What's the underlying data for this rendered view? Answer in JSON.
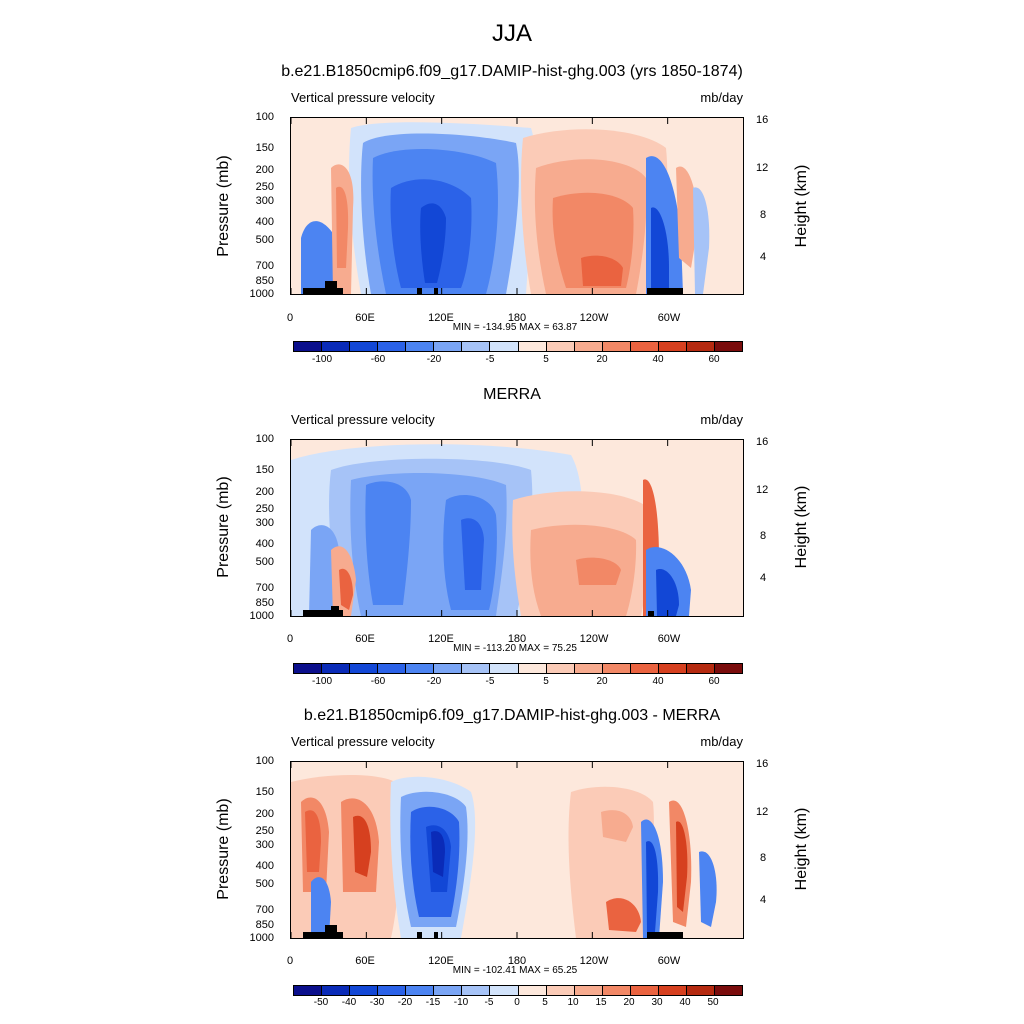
{
  "page_title": "JJA",
  "colors": {
    "abs_levels": [
      "#0b0f8c",
      "#0a2bb8",
      "#1247d6",
      "#2b62e8",
      "#4c84f2",
      "#7aa5f5",
      "#a6c3f7",
      "#d2e3fb",
      "#fde8dc",
      "#fbcbb7",
      "#f7ab8f",
      "#f28866",
      "#ea6340",
      "#d6401f",
      "#b52a10",
      "#7a0c0c"
    ],
    "diff_levels": [
      "#0b0f8c",
      "#0a2bb8",
      "#1247d6",
      "#2b62e8",
      "#4c84f2",
      "#7aa5f5",
      "#a6c3f7",
      "#d2e3fb",
      "#fde8dc",
      "#fbcbb7",
      "#f7ab8f",
      "#f28866",
      "#ea6340",
      "#d6401f",
      "#b52a10",
      "#7a0c0c"
    ]
  },
  "panels": [
    {
      "title": "b.e21.B1850cmip6.f09_g17.DAMIP-hist-ghg.003 (yrs 1850-1874)",
      "left_label": "Vertical pressure velocity",
      "right_label": "mb/day",
      "ylabel_left": "Pressure (mb)",
      "ylabel_right": "Height (km)",
      "stats": "MIN = -134.95  MAX =  63.87",
      "colorbar_labels": [
        "-100",
        "-60",
        "-20",
        "-5",
        "5",
        "20",
        "40",
        "60"
      ]
    },
    {
      "title": "MERRA",
      "left_label": "Vertical pressure velocity",
      "right_label": "mb/day",
      "ylabel_left": "Pressure (mb)",
      "ylabel_right": "Height (km)",
      "stats": "MIN = -113.20  MAX =  75.25",
      "colorbar_labels": [
        "-100",
        "-60",
        "-20",
        "-5",
        "5",
        "20",
        "40",
        "60"
      ]
    },
    {
      "title": "b.e21.B1850cmip6.f09_g17.DAMIP-hist-ghg.003 - MERRA",
      "left_label": "Vertical pressure velocity",
      "right_label": "mb/day",
      "ylabel_left": "Pressure (mb)",
      "ylabel_right": "Height (km)",
      "stats": "MIN = -102.41  MAX =  65.25",
      "colorbar_labels": [
        "-50",
        "-40",
        "-30",
        "-20",
        "-15",
        "-10",
        "-5",
        "0",
        "5",
        "10",
        "15",
        "20",
        "30",
        "40",
        "50"
      ]
    }
  ],
  "chart_data": [
    {
      "type": "heatmap",
      "title": "b.e21.B1850cmip6.f09_g17.DAMIP-hist-ghg.003 (yrs 1850-1874)",
      "units": "mb/day",
      "x_ticks": [
        "0",
        "60E",
        "120E",
        "180",
        "120W",
        "60W"
      ],
      "x_tick_values": [
        0,
        60,
        120,
        180,
        240,
        300
      ],
      "xlim": [
        0,
        360
      ],
      "y_ticks_left": [
        "100",
        "150",
        "200",
        "250",
        "300",
        "400",
        "500",
        "700",
        "850",
        "1000"
      ],
      "y_tick_values_left": [
        100,
        150,
        200,
        250,
        300,
        400,
        500,
        700,
        850,
        1000
      ],
      "ylim": [
        1000,
        100
      ],
      "y_ticks_right": [
        "4",
        "8",
        "12",
        "16"
      ],
      "min": -134.95,
      "max": 63.87,
      "levels": [
        -100,
        -60,
        -20,
        -5,
        5,
        20,
        40,
        60
      ]
    },
    {
      "type": "heatmap",
      "title": "MERRA",
      "units": "mb/day",
      "x_ticks": [
        "0",
        "60E",
        "120E",
        "180",
        "120W",
        "60W"
      ],
      "x_tick_values": [
        0,
        60,
        120,
        180,
        240,
        300
      ],
      "xlim": [
        0,
        360
      ],
      "y_ticks_left": [
        "100",
        "150",
        "200",
        "250",
        "300",
        "400",
        "500",
        "700",
        "850",
        "1000"
      ],
      "y_tick_values_left": [
        100,
        150,
        200,
        250,
        300,
        400,
        500,
        700,
        850,
        1000
      ],
      "ylim": [
        1000,
        100
      ],
      "y_ticks_right": [
        "4",
        "8",
        "12",
        "16"
      ],
      "min": -113.2,
      "max": 75.25,
      "levels": [
        -100,
        -60,
        -20,
        -5,
        5,
        20,
        40,
        60
      ]
    },
    {
      "type": "heatmap",
      "title": "b.e21.B1850cmip6.f09_g17.DAMIP-hist-ghg.003 - MERRA",
      "units": "mb/day",
      "x_ticks": [
        "0",
        "60E",
        "120E",
        "180",
        "120W",
        "60W"
      ],
      "x_tick_values": [
        0,
        60,
        120,
        180,
        240,
        300
      ],
      "xlim": [
        0,
        360
      ],
      "y_ticks_left": [
        "100",
        "150",
        "200",
        "250",
        "300",
        "400",
        "500",
        "700",
        "850",
        "1000"
      ],
      "y_tick_values_left": [
        100,
        150,
        200,
        250,
        300,
        400,
        500,
        700,
        850,
        1000
      ],
      "ylim": [
        1000,
        100
      ],
      "y_ticks_right": [
        "4",
        "8",
        "12",
        "16"
      ],
      "min": -102.41,
      "max": 65.25,
      "levels": [
        -50,
        -40,
        -30,
        -20,
        -15,
        -10,
        -5,
        0,
        5,
        10,
        15,
        20,
        30,
        40,
        50
      ]
    }
  ]
}
